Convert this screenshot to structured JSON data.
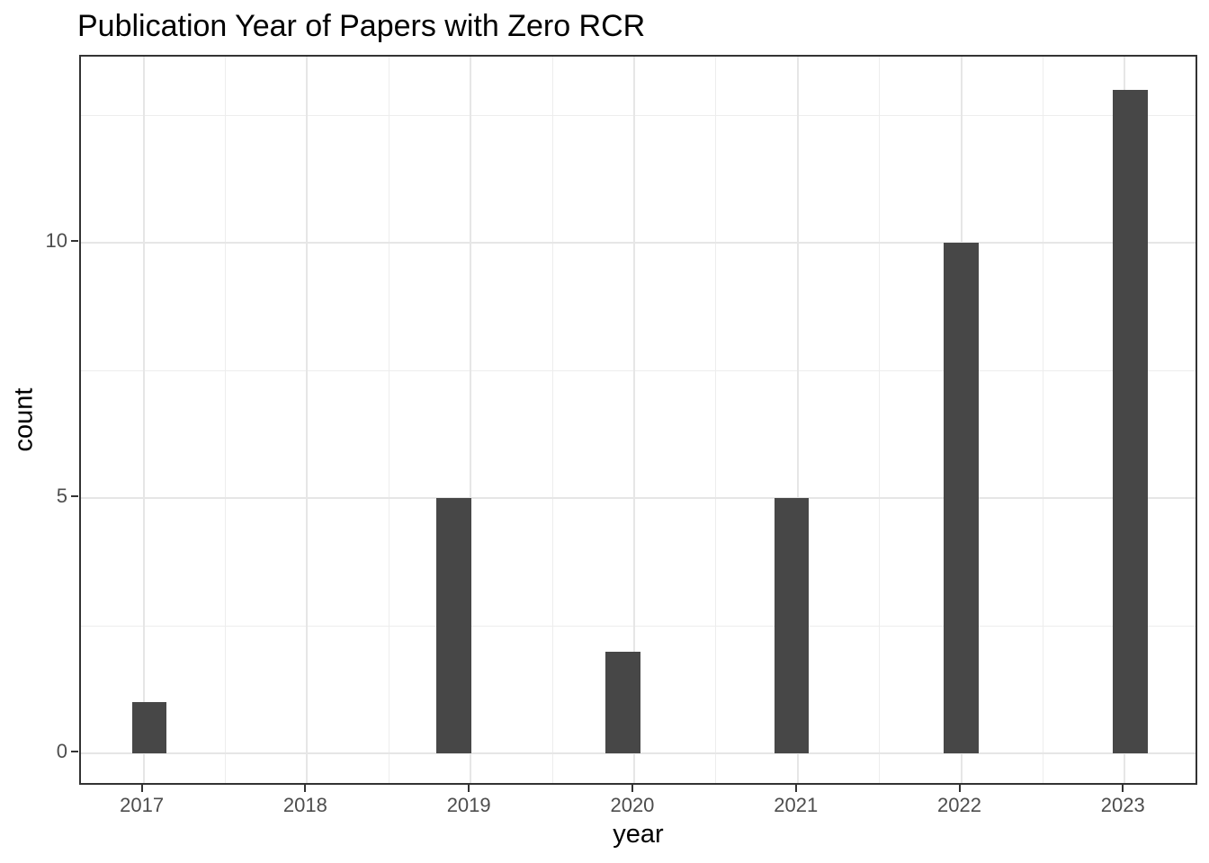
{
  "chart_data": {
    "type": "bar",
    "subtype": "histogram",
    "title": "Publication Year of Papers with Zero RCR",
    "xlabel": "year",
    "ylabel": "count",
    "categories": [
      2017,
      2018,
      2019,
      2020,
      2021,
      2022,
      2023
    ],
    "values": [
      1,
      0,
      5,
      2,
      5,
      10,
      13
    ],
    "bars": [
      {
        "x": 2017.035,
        "count": 1
      },
      {
        "x": 2018.897,
        "count": 5
      },
      {
        "x": 2019.931,
        "count": 2
      },
      {
        "x": 2020.962,
        "count": 5
      },
      {
        "x": 2021.999,
        "count": 10
      },
      {
        "x": 2023.033,
        "count": 13
      }
    ],
    "bar_width": 0.212,
    "x_ticks": [
      2017,
      2018,
      2019,
      2020,
      2021,
      2022,
      2023
    ],
    "x_minor_ticks": [
      2017.5,
      2018.5,
      2019.5,
      2020.5,
      2021.5,
      2022.5
    ],
    "y_ticks": [
      0,
      5,
      10
    ],
    "y_minor_ticks": [
      2.5,
      7.5,
      12.5
    ],
    "xlim": [
      2016.617,
      2023.455
    ],
    "ylim": [
      -0.65,
      13.65
    ],
    "grid": true,
    "legend": false,
    "colors": {
      "bar": "#474747",
      "grid_major": "#e6e6e6",
      "grid_minor": "#ededed",
      "panel_border": "#333333",
      "tick_label": "#4d4d4d",
      "title": "#000000",
      "background": "#ffffff"
    }
  }
}
